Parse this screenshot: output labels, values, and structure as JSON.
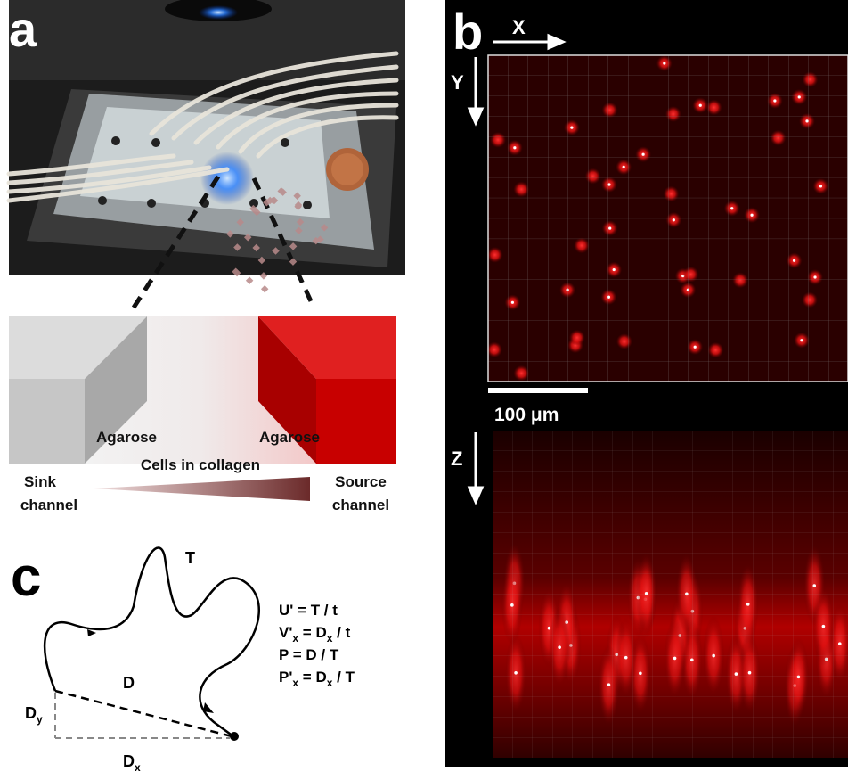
{
  "panel_a": {
    "label": "a",
    "diagram": {
      "left_gel": "Agarose",
      "right_gel": "Agarose",
      "center": "Cells in collagen",
      "sink": [
        "Sink",
        "channel"
      ],
      "source": [
        "Source",
        "channel"
      ]
    }
  },
  "panel_b": {
    "label": "b",
    "axes": {
      "x": "X",
      "y": "Y",
      "z": "Z"
    },
    "scale_bar": "100 μm"
  },
  "panel_c": {
    "label": "c",
    "path_labels": {
      "total": "T",
      "displacement": "D",
      "dy": [
        "D",
        "y"
      ],
      "dx": [
        "D",
        "x"
      ]
    },
    "equations": [
      [
        "U' = T / t"
      ],
      [
        "V'",
        "x",
        " = D",
        "x",
        " / t"
      ],
      [
        "P = D / T"
      ],
      [
        "P'",
        "x",
        " = D",
        "x",
        " / T"
      ]
    ]
  }
}
